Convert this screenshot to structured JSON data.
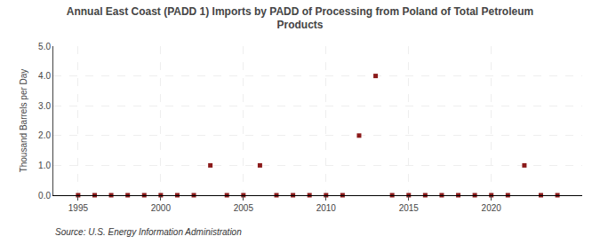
{
  "chart_data": {
    "type": "scatter",
    "title": "Annual East Coast (PADD 1) Imports by PADD of Processing from Poland of Total Petroleum\nProducts",
    "ylabel": "Thousand Barrels per Day",
    "annotations": [
      "Source: U.S. Energy Information Administration"
    ],
    "x": [
      1995,
      1996,
      1997,
      1998,
      1999,
      2000,
      2001,
      2002,
      2003,
      2004,
      2005,
      2006,
      2007,
      2008,
      2009,
      2010,
      2011,
      2012,
      2013,
      2014,
      2015,
      2016,
      2017,
      2018,
      2019,
      2020,
      2021,
      2022,
      2023,
      2024
    ],
    "values": [
      0.0,
      0.0,
      0.0,
      0.0,
      0.0,
      0.0,
      0.0,
      0.0,
      1.0,
      0.0,
      0.0,
      1.0,
      0.0,
      0.0,
      0.0,
      0.0,
      0.0,
      2.0,
      4.0,
      0.0,
      0.0,
      0.0,
      0.0,
      0.0,
      0.0,
      0.0,
      0.0,
      1.0,
      0.0,
      0.0
    ],
    "color": "#8b1a1a",
    "marker": "square",
    "xlim": [
      1993.5,
      2025.5
    ],
    "ylim": [
      0.0,
      5.0
    ],
    "xticks": [
      1995,
      2000,
      2005,
      2010,
      2015,
      2020
    ],
    "yticks": [
      {
        "value": 0.0,
        "label": "0.0"
      },
      {
        "value": 1.0,
        "label": "1.0"
      },
      {
        "value": 2.0,
        "label": "2.0"
      },
      {
        "value": 3.0,
        "label": "3.0"
      },
      {
        "value": 4.0,
        "label": "4.0"
      },
      {
        "value": 5.0,
        "label": "5.0"
      }
    ],
    "grid": true
  }
}
